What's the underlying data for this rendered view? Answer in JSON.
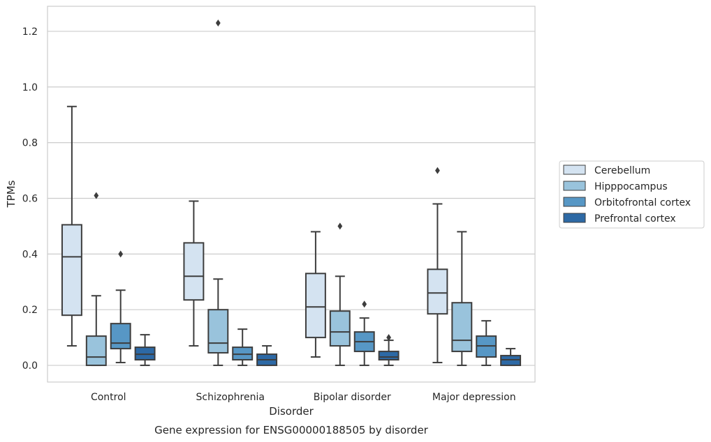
{
  "chart_data": {
    "type": "box",
    "title": "",
    "caption": "Gene expression for ENSG00000188505 by disorder",
    "xlabel": "Disorder",
    "ylabel": "TPMs",
    "ylim": [
      -0.06,
      1.29
    ],
    "yticks": [
      0.0,
      0.2,
      0.4,
      0.6,
      0.8,
      1.0,
      1.2
    ],
    "ytick_labels": [
      "0.0",
      "0.2",
      "0.4",
      "0.6",
      "0.8",
      "1.0",
      "1.2"
    ],
    "grid": "horizontal",
    "legend_position": "right",
    "categories": [
      "Control",
      "Schizophrenia",
      "Bipolar disorder",
      "Major depression"
    ],
    "series": [
      {
        "name": "Cerebellum",
        "color": "#d4e3f1",
        "boxes": [
          {
            "whisker_low": 0.07,
            "q1": 0.18,
            "median": 0.39,
            "q3": 0.505,
            "whisker_high": 0.93,
            "outliers": []
          },
          {
            "whisker_low": 0.07,
            "q1": 0.235,
            "median": 0.32,
            "q3": 0.44,
            "whisker_high": 0.59,
            "outliers": []
          },
          {
            "whisker_low": 0.03,
            "q1": 0.1,
            "median": 0.21,
            "q3": 0.33,
            "whisker_high": 0.48,
            "outliers": []
          },
          {
            "whisker_low": 0.01,
            "q1": 0.185,
            "median": 0.26,
            "q3": 0.345,
            "whisker_high": 0.58,
            "outliers": [
              0.7
            ]
          }
        ]
      },
      {
        "name": "Hipppocampus",
        "color": "#99c3dc",
        "boxes": [
          {
            "whisker_low": 0.0,
            "q1": 0.0,
            "median": 0.03,
            "q3": 0.105,
            "whisker_high": 0.25,
            "outliers": [
              0.61
            ]
          },
          {
            "whisker_low": 0.0,
            "q1": 0.045,
            "median": 0.08,
            "q3": 0.2,
            "whisker_high": 0.31,
            "outliers": [
              1.23
            ]
          },
          {
            "whisker_low": 0.0,
            "q1": 0.07,
            "median": 0.12,
            "q3": 0.195,
            "whisker_high": 0.32,
            "outliers": [
              0.5
            ]
          },
          {
            "whisker_low": 0.0,
            "q1": 0.05,
            "median": 0.09,
            "q3": 0.225,
            "whisker_high": 0.48,
            "outliers": []
          }
        ]
      },
      {
        "name": "Orbitofrontal cortex",
        "color": "#5797c5",
        "boxes": [
          {
            "whisker_low": 0.01,
            "q1": 0.06,
            "median": 0.08,
            "q3": 0.15,
            "whisker_high": 0.27,
            "outliers": [
              0.4
            ]
          },
          {
            "whisker_low": 0.0,
            "q1": 0.02,
            "median": 0.04,
            "q3": 0.065,
            "whisker_high": 0.13,
            "outliers": []
          },
          {
            "whisker_low": 0.0,
            "q1": 0.05,
            "median": 0.085,
            "q3": 0.12,
            "whisker_high": 0.17,
            "outliers": [
              0.22
            ]
          },
          {
            "whisker_low": 0.0,
            "q1": 0.03,
            "median": 0.07,
            "q3": 0.105,
            "whisker_high": 0.16,
            "outliers": []
          }
        ]
      },
      {
        "name": "Prefrontal cortex",
        "color": "#2d69a5",
        "boxes": [
          {
            "whisker_low": 0.0,
            "q1": 0.02,
            "median": 0.04,
            "q3": 0.065,
            "whisker_high": 0.11,
            "outliers": []
          },
          {
            "whisker_low": 0.0,
            "q1": 0.0,
            "median": 0.02,
            "q3": 0.04,
            "whisker_high": 0.07,
            "outliers": []
          },
          {
            "whisker_low": 0.0,
            "q1": 0.02,
            "median": 0.03,
            "q3": 0.05,
            "whisker_high": 0.09,
            "outliers": [
              0.1
            ]
          },
          {
            "whisker_low": 0.0,
            "q1": 0.0,
            "median": 0.02,
            "q3": 0.035,
            "whisker_high": 0.06,
            "outliers": []
          }
        ]
      }
    ]
  }
}
